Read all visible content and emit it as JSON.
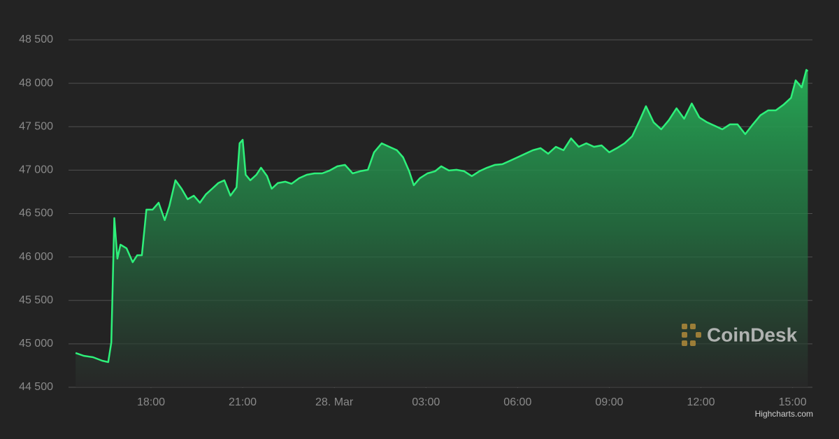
{
  "chart_data": {
    "type": "area",
    "x": [
      -8.47,
      -8.2,
      -7.9,
      -7.6,
      -7.4,
      -7.3,
      -7.2,
      -7.1,
      -7.0,
      -6.8,
      -6.6,
      -6.45,
      -6.3,
      -6.15,
      -5.95,
      -5.75,
      -5.55,
      -5.4,
      -5.2,
      -5.0,
      -4.8,
      -4.6,
      -4.4,
      -4.2,
      -4.0,
      -3.8,
      -3.6,
      -3.4,
      -3.2,
      -3.1,
      -3.0,
      -2.9,
      -2.75,
      -2.55,
      -2.4,
      -2.2,
      -2.05,
      -1.85,
      -1.6,
      -1.4,
      -1.15,
      -0.9,
      -0.65,
      -0.4,
      -0.15,
      0.1,
      0.35,
      0.6,
      0.85,
      1.1,
      1.3,
      1.55,
      1.8,
      2.05,
      2.25,
      2.45,
      2.6,
      2.8,
      3.05,
      3.3,
      3.5,
      3.75,
      4.0,
      4.25,
      4.5,
      4.75,
      5.0,
      5.25,
      5.5,
      5.75,
      6.0,
      6.25,
      6.5,
      6.75,
      7.0,
      7.25,
      7.5,
      7.75,
      8.0,
      8.25,
      8.5,
      8.75,
      9.0,
      9.25,
      9.5,
      9.75,
      10.0,
      10.2,
      10.45,
      10.7,
      10.95,
      11.2,
      11.45,
      11.7,
      11.95,
      12.2,
      12.45,
      12.7,
      12.95,
      13.2,
      13.45,
      13.7,
      13.95,
      14.2,
      14.45,
      14.7,
      14.95,
      15.1,
      15.3,
      15.45,
      15.5
    ],
    "values": [
      44895,
      44862,
      44846,
      44806,
      44790,
      45015,
      46448,
      45981,
      46142,
      46100,
      45940,
      46020,
      46020,
      46545,
      46545,
      46625,
      46424,
      46585,
      46883,
      46786,
      46665,
      46706,
      46625,
      46722,
      46786,
      46851,
      46883,
      46706,
      46802,
      47309,
      47350,
      46947,
      46883,
      46947,
      47028,
      46931,
      46786,
      46851,
      46867,
      46843,
      46907,
      46947,
      46963,
      46963,
      46996,
      47044,
      47060,
      46963,
      46988,
      47004,
      47205,
      47309,
      47269,
      47229,
      47148,
      46988,
      46826,
      46907,
      46963,
      46988,
      47044,
      46996,
      47004,
      46988,
      46931,
      46988,
      47028,
      47060,
      47068,
      47108,
      47148,
      47189,
      47229,
      47253,
      47189,
      47269,
      47229,
      47366,
      47269,
      47309,
      47269,
      47285,
      47205,
      47253,
      47309,
      47390,
      47575,
      47736,
      47551,
      47470,
      47575,
      47712,
      47591,
      47768,
      47607,
      47551,
      47511,
      47470,
      47527,
      47527,
      47414,
      47527,
      47632,
      47688,
      47688,
      47752,
      47833,
      48034,
      47953,
      48155,
      48139
    ],
    "color": "#2ef07a",
    "xlim": [
      -8.7,
      15.65
    ],
    "xticks": [
      {
        "value": -6,
        "label": "18:00"
      },
      {
        "value": -3,
        "label": "21:00"
      },
      {
        "value": 0,
        "label": "28. Mar"
      },
      {
        "value": 3,
        "label": "03:00"
      },
      {
        "value": 6,
        "label": "06:00"
      },
      {
        "value": 9,
        "label": "09:00"
      },
      {
        "value": 12,
        "label": "12:00"
      },
      {
        "value": 15,
        "label": "15:00"
      }
    ],
    "ylim": [
      44500,
      48500
    ],
    "yticks": [
      {
        "value": 44500,
        "label": "44 500"
      },
      {
        "value": 45000,
        "label": "45 000"
      },
      {
        "value": 45500,
        "label": "45 500"
      },
      {
        "value": 46000,
        "label": "46 000"
      },
      {
        "value": 46500,
        "label": "46 500"
      },
      {
        "value": 47000,
        "label": "47 000"
      },
      {
        "value": 47500,
        "label": "47 500"
      },
      {
        "value": 48000,
        "label": "48 000"
      },
      {
        "value": 48500,
        "label": "48 500"
      }
    ],
    "grid": true,
    "watermark": "CoinDesk",
    "credits": "Highcharts.com"
  }
}
